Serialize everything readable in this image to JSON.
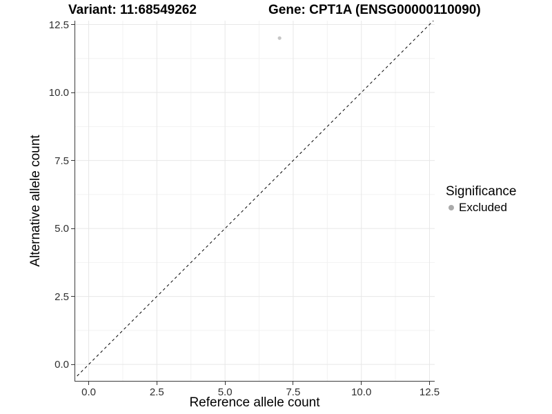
{
  "chart_data": {
    "type": "scatter",
    "title": "Variant: 11:68549262        Gene: CPT1A (ENSG00000110090)",
    "title_variant": "Variant: 11:68549262",
    "title_gene": "Gene: CPT1A (ENSG00000110090)",
    "xlabel": "Reference allele count",
    "ylabel": "Alternative allele count",
    "xlim": [
      -0.52,
      12.69
    ],
    "ylim": [
      -0.63,
      12.64
    ],
    "xticks": {
      "values": [
        0,
        2.5,
        5,
        7.5,
        10,
        12.5
      ],
      "labels": [
        "0.0",
        "2.5",
        "5.0",
        "7.5",
        "10.0",
        "12.5"
      ]
    },
    "yticks": {
      "values": [
        0,
        2.5,
        5,
        7.5,
        10,
        12.5
      ],
      "labels": [
        "0.0",
        "2.5",
        "5.0",
        "7.5",
        "10.0",
        "12.5"
      ]
    },
    "grid": {
      "major": true,
      "minor": true
    },
    "series": [
      {
        "name": "Excluded",
        "color": "#c6c6c6",
        "marker_radius": 2.6,
        "points": [
          {
            "x": 7,
            "y": 12
          }
        ]
      }
    ],
    "identity_line": {
      "type": "y=x",
      "style": "dashed",
      "color": "#000000"
    },
    "legend": {
      "title": "Significance",
      "position": "right",
      "items": [
        {
          "label": "Excluded",
          "color": "#aaaaaa"
        }
      ]
    }
  },
  "colors": {
    "background": "#ffffff",
    "axis_line": "#3a3a3a",
    "tick_mark": "#333333",
    "tick_label": "#2e2e2e",
    "grid_major": "#e7e7e7",
    "grid_minor": "#f2f2f2",
    "title_text": "#000000"
  }
}
